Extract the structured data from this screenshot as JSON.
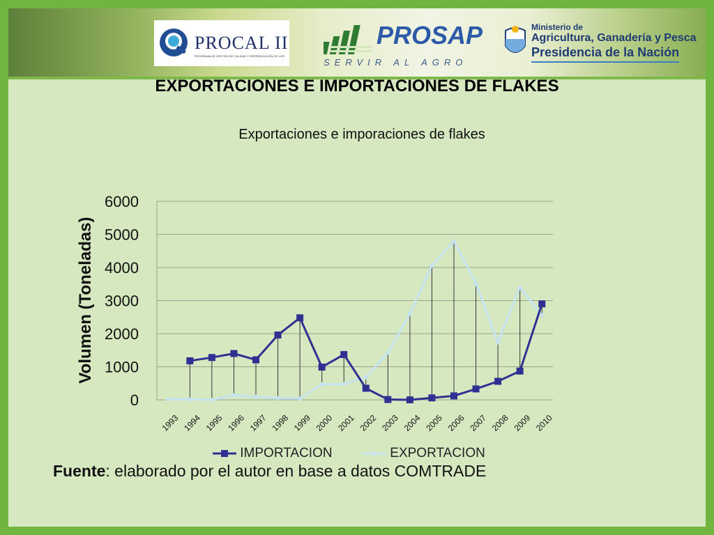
{
  "header": {
    "procal": {
      "name": "PROCAL II",
      "subtitle": "PROGRAMA DE GESTIÓN DE CALIDAD Y DIFERENCIACIÓN DE LOS ALIMENTOS"
    },
    "prosap": {
      "name": "PROSAP",
      "tagline": "SERVIR AL AGRO"
    },
    "ministerio": {
      "line1": "Ministerio de",
      "line2": "Agricultura, Ganadería y Pesca",
      "line3": "Presidencia de la Nación"
    }
  },
  "slide_title": "EXPORTACIONES E IMPORTACIONES DE FLAKES",
  "source": {
    "label": "Fuente",
    "text": ": elaborado por el autor en base a datos COMTRADE"
  },
  "colors": {
    "importacion": "#2e3192",
    "exportacion": "#c5e3ef",
    "background": "#d6e8c0",
    "frame": "#6fb53f"
  },
  "chart_data": {
    "type": "line",
    "title": "Exportaciones e imporaciones de flakes",
    "xlabel": "",
    "ylabel": "Volumen (Toneladas)",
    "ylim": [
      0,
      6000
    ],
    "yticks": [
      0,
      1000,
      2000,
      3000,
      4000,
      5000,
      6000
    ],
    "grid": true,
    "legend_position": "bottom",
    "categories": [
      "1993",
      "1994",
      "1995",
      "1996",
      "1997",
      "1998",
      "1999",
      "2000",
      "2001",
      "2002",
      "2003",
      "2004",
      "2005",
      "2006",
      "2007",
      "2008",
      "2009",
      "2010"
    ],
    "series": [
      {
        "name": "IMPORTACION",
        "values": [
          null,
          1180,
          1280,
          1400,
          1210,
          1960,
          2480,
          990,
          1370,
          350,
          10,
          0,
          60,
          120,
          330,
          560,
          870,
          2900
        ]
      },
      {
        "name": "EXPORTACION",
        "values": [
          20,
          10,
          0,
          140,
          90,
          50,
          40,
          470,
          480,
          680,
          1420,
          2600,
          4060,
          4790,
          3520,
          1740,
          3400,
          2560
        ]
      }
    ]
  }
}
